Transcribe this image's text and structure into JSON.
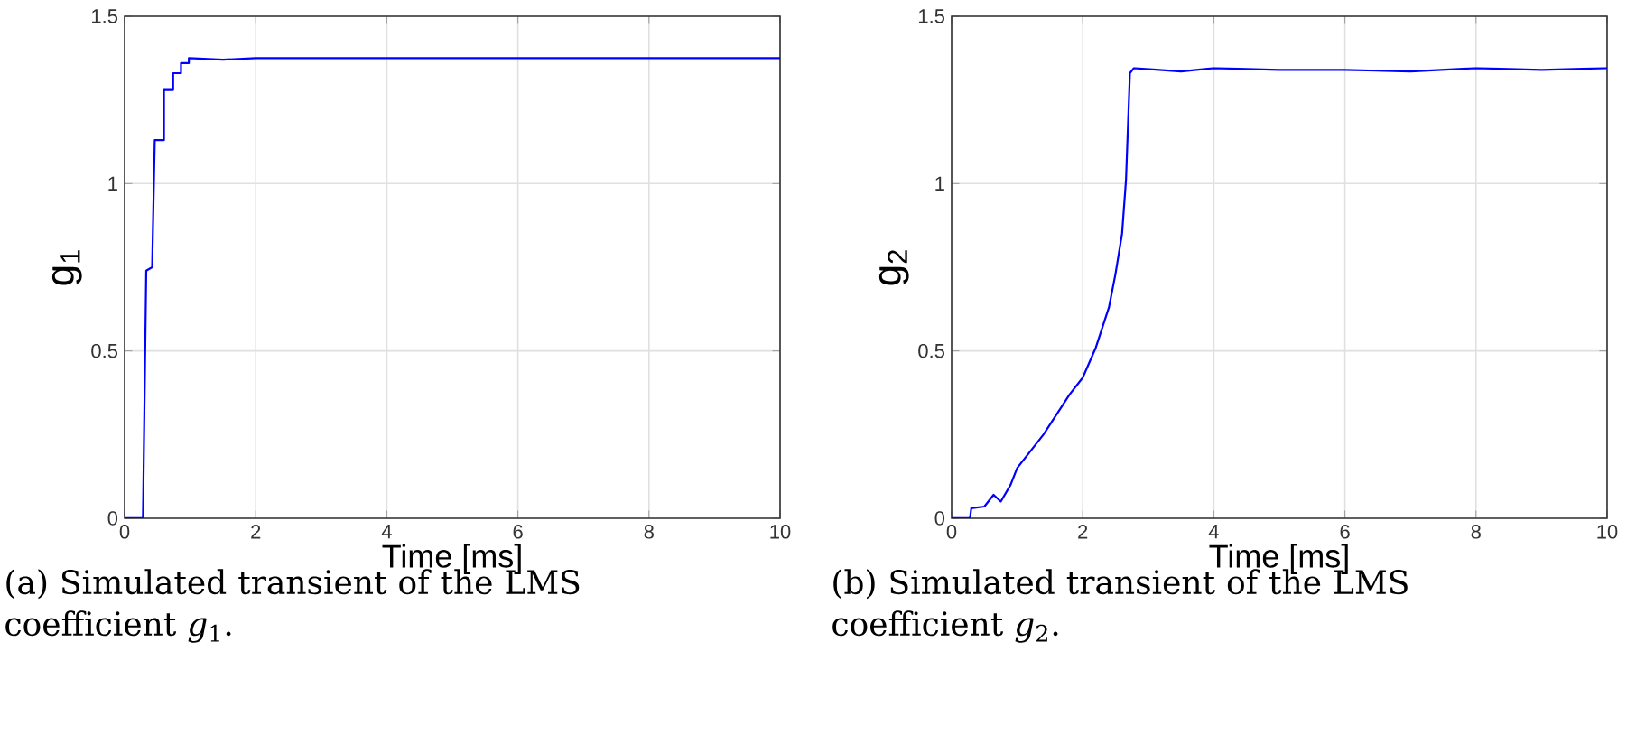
{
  "chart_data": [
    {
      "type": "line",
      "xlabel": "Time [ms]",
      "ylabel": "g$_{1}$",
      "xlim": [
        0,
        10
      ],
      "ylim": [
        0,
        1.5
      ],
      "xticks": [
        0,
        2,
        4,
        6,
        8,
        10
      ],
      "yticks": [
        0,
        0.5,
        1,
        1.5
      ],
      "grid": true,
      "series": [
        {
          "color": "#0000ff",
          "x": [
            0,
            0.28,
            0.33,
            0.42,
            0.46,
            0.6,
            0.6,
            0.74,
            0.74,
            0.86,
            0.86,
            0.98,
            0.98,
            1.5,
            2,
            3,
            4,
            6,
            8,
            10
          ],
          "values": [
            0,
            0,
            0.74,
            0.75,
            1.13,
            1.13,
            1.28,
            1.28,
            1.33,
            1.33,
            1.36,
            1.36,
            1.375,
            1.37,
            1.375,
            1.375,
            1.375,
            1.375,
            1.375,
            1.375
          ]
        }
      ],
      "annotations": [
        "(a) Simulated transient of the LMS coefficient *g*$_{1}$."
      ]
    },
    {
      "type": "line",
      "xlabel": "Time [ms]",
      "ylabel": "g$_{2}$",
      "xlim": [
        0,
        10
      ],
      "ylim": [
        0,
        1.5
      ],
      "xticks": [
        0,
        2,
        4,
        6,
        8,
        10
      ],
      "yticks": [
        0,
        0.5,
        1,
        1.5
      ],
      "grid": true,
      "series": [
        {
          "color": "#0000ff",
          "x": [
            0,
            0.28,
            0.3,
            0.5,
            0.64,
            0.75,
            0.9,
            1.0,
            1.2,
            1.4,
            1.6,
            1.8,
            2.0,
            2.2,
            2.4,
            2.5,
            2.6,
            2.66,
            2.72,
            2.78,
            3.5,
            4,
            5,
            6,
            7,
            8,
            9,
            10
          ],
          "values": [
            0,
            0,
            0.03,
            0.035,
            0.07,
            0.05,
            0.1,
            0.15,
            0.2,
            0.25,
            0.31,
            0.37,
            0.42,
            0.51,
            0.63,
            0.73,
            0.85,
            1.01,
            1.33,
            1.345,
            1.335,
            1.345,
            1.34,
            1.34,
            1.335,
            1.345,
            1.34,
            1.345
          ]
        }
      ],
      "annotations": [
        "(b) Simulated transient of the LMS coefficient *g*$_{2}$."
      ]
    }
  ]
}
